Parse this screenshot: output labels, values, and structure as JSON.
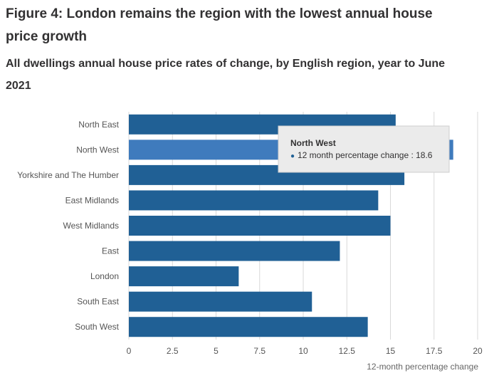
{
  "figure": {
    "title": "Figure 4: London remains the region with the lowest annual house price growth",
    "subtitle": "All dwellings annual house price rates of change, by English region, year to June 2021"
  },
  "chart_data": {
    "type": "bar",
    "orientation": "horizontal",
    "categories": [
      "North East",
      "North West",
      "Yorkshire and The Humber",
      "East Midlands",
      "West Midlands",
      "East",
      "London",
      "South East",
      "South West"
    ],
    "series": [
      {
        "name": "12 month percentage change",
        "values": [
          15.3,
          18.6,
          15.8,
          14.3,
          15.0,
          12.1,
          6.3,
          10.5,
          13.7
        ]
      }
    ],
    "xlabel": "12-month percentage change",
    "ylabel": "",
    "xlim": [
      0,
      20
    ],
    "xticks": [
      "0",
      "2.5",
      "5",
      "7.5",
      "10",
      "12.5",
      "15",
      "17.5",
      "20"
    ],
    "grid": true,
    "colors": {
      "bar": "#206095",
      "bar_highlight": "#3f7bbd",
      "grid": "#d9d9d9"
    },
    "highlighted_category": "North West",
    "tooltip": {
      "title": "North West",
      "marker": "●",
      "text": "12 month percentage change : 18.6"
    }
  }
}
